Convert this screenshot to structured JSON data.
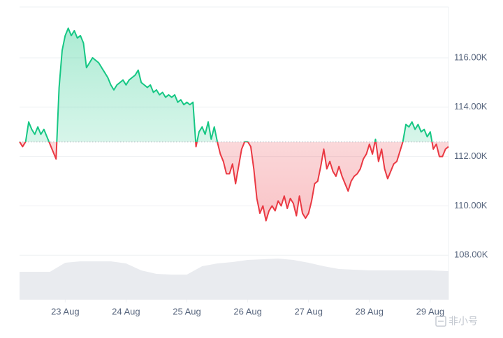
{
  "chart_data": {
    "type": "baseline-line",
    "x": [
      22.25,
      22.3,
      22.35,
      22.4,
      22.45,
      22.5,
      22.55,
      22.6,
      22.65,
      22.7,
      22.75,
      22.8,
      22.85,
      22.9,
      22.95,
      23,
      23.05,
      23.1,
      23.15,
      23.2,
      23.25,
      23.3,
      23.35,
      23.4,
      23.45,
      23.5,
      23.55,
      23.6,
      23.65,
      23.7,
      23.75,
      23.8,
      23.85,
      23.9,
      23.95,
      24,
      24.05,
      24.1,
      24.15,
      24.2,
      24.25,
      24.3,
      24.35,
      24.4,
      24.45,
      24.5,
      24.55,
      24.6,
      24.65,
      24.7,
      24.75,
      24.8,
      24.85,
      24.9,
      24.95,
      25,
      25.05,
      25.1,
      25.15,
      25.2,
      25.25,
      25.3,
      25.35,
      25.4,
      25.45,
      25.5,
      25.55,
      25.6,
      25.65,
      25.7,
      25.75,
      25.8,
      25.85,
      25.9,
      25.95,
      26,
      26.05,
      26.1,
      26.15,
      26.2,
      26.25,
      26.3,
      26.35,
      26.4,
      26.45,
      26.5,
      26.55,
      26.6,
      26.65,
      26.7,
      26.75,
      26.8,
      26.85,
      26.9,
      26.95,
      27,
      27.05,
      27.1,
      27.15,
      27.2,
      27.25,
      27.3,
      27.35,
      27.4,
      27.45,
      27.5,
      27.55,
      27.6,
      27.65,
      27.7,
      27.75,
      27.8,
      27.85,
      27.9,
      27.95,
      28,
      28.05,
      28.1,
      28.15,
      28.2,
      28.25,
      28.3,
      28.35,
      28.4,
      28.45,
      28.5,
      28.55,
      28.6,
      28.65,
      28.7,
      28.75,
      28.8,
      28.85,
      28.9,
      28.95,
      29,
      29.05,
      29.1,
      29.15,
      29.2,
      29.25,
      29.3
    ],
    "values": [
      112600,
      112400,
      112600,
      113400,
      113100,
      112900,
      113200,
      112900,
      113100,
      112800,
      112500,
      112200,
      111900,
      114800,
      116300,
      116900,
      117200,
      116900,
      117100,
      116800,
      116900,
      116600,
      115600,
      115800,
      116000,
      115900,
      115800,
      115600,
      115400,
      115200,
      114900,
      114700,
      114900,
      115000,
      115100,
      114900,
      115100,
      115200,
      115300,
      115500,
      115000,
      114900,
      114800,
      114900,
      114600,
      114700,
      114500,
      114600,
      114400,
      114500,
      114400,
      114500,
      114200,
      114300,
      114100,
      114200,
      114100,
      114200,
      112400,
      113000,
      113200,
      112900,
      113400,
      112700,
      113200,
      112600,
      112100,
      111800,
      111300,
      111300,
      111700,
      110900,
      111600,
      112300,
      112600,
      112600,
      112400,
      111500,
      110300,
      109700,
      110000,
      109400,
      109800,
      110000,
      109800,
      110200,
      110000,
      110400,
      109900,
      110300,
      110100,
      109600,
      110400,
      109700,
      109500,
      109700,
      110200,
      110900,
      111000,
      111600,
      112300,
      111500,
      111800,
      111400,
      111200,
      111600,
      111200,
      110900,
      110600,
      111000,
      111200,
      111300,
      111500,
      111900,
      112100,
      112500,
      112100,
      112700,
      111800,
      112300,
      111500,
      111100,
      111400,
      111700,
      111800,
      112200,
      112600,
      113300,
      113200,
      113400,
      113100,
      113300,
      113000,
      113100,
      112800,
      113000,
      112300,
      112500,
      112000,
      112000,
      112300,
      112400
    ],
    "baseline": 112590,
    "above_color": "#16c784",
    "below_color": "#ea3943",
    "xlim": [
      22.25,
      29.3
    ],
    "xticks": [
      {
        "value": 23,
        "label": "23 Aug"
      },
      {
        "value": 24,
        "label": "24 Aug"
      },
      {
        "value": 25,
        "label": "25 Aug"
      },
      {
        "value": 26,
        "label": "26 Aug"
      },
      {
        "value": 27,
        "label": "27 Aug"
      },
      {
        "value": 28,
        "label": "28 Aug"
      },
      {
        "value": 29,
        "label": "29 Aug"
      }
    ],
    "ylim": [
      106200,
      118060
    ],
    "yticks": [
      {
        "value": 108000,
        "label": "108.00K"
      },
      {
        "value": 110000,
        "label": "110.00K"
      },
      {
        "value": 112000,
        "label": "112.00K"
      },
      {
        "value": 114000,
        "label": "114.00K"
      },
      {
        "value": 116000,
        "label": "116.00K"
      }
    ],
    "grid": true,
    "volume": {
      "x": [
        22.25,
        22.5,
        22.75,
        23,
        23.25,
        23.5,
        23.75,
        24,
        24.25,
        24.5,
        24.75,
        25,
        25.25,
        25.5,
        25.75,
        26,
        26.25,
        26.5,
        26.75,
        27,
        27.25,
        27.5,
        27.75,
        28,
        28.25,
        28.5,
        28.75,
        29,
        29.3
      ],
      "values": [
        40,
        40,
        40,
        53,
        55,
        55,
        55,
        52,
        42,
        37,
        36,
        36,
        48,
        52,
        54,
        57,
        58,
        59,
        57,
        53,
        48,
        44,
        43,
        42,
        42,
        42,
        42,
        42,
        41
      ],
      "ylim": [
        0,
        70
      ],
      "color": "#e9ebef"
    }
  },
  "watermark": "非小号"
}
